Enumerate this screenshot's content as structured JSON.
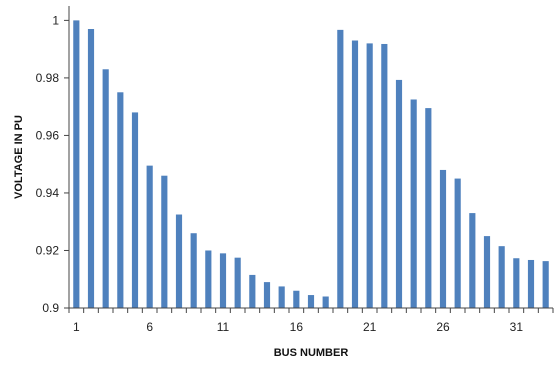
{
  "chart_data": {
    "type": "bar",
    "xlabel": "BUS NUMBER",
    "ylabel": "VOLTAGE IN PU",
    "ylim": [
      0.9,
      1.005
    ],
    "yticks": [
      0.9,
      0.92,
      0.94,
      0.96,
      0.98,
      1
    ],
    "ytick_labels": [
      "0.9",
      "0.92",
      "0.94",
      "0.96",
      "0.98",
      "1"
    ],
    "xtick_labels": [
      "1",
      "6",
      "11",
      "16",
      "21",
      "26",
      "31"
    ],
    "categories": [
      "1",
      "2",
      "3",
      "4",
      "5",
      "6",
      "7",
      "8",
      "9",
      "10",
      "11",
      "12",
      "13",
      "14",
      "15",
      "16",
      "17",
      "18",
      "19",
      "20",
      "21",
      "22",
      "23",
      "24",
      "25",
      "26",
      "27",
      "28",
      "29",
      "30",
      "31",
      "32",
      "33"
    ],
    "values": [
      1.0,
      0.997,
      0.983,
      0.975,
      0.968,
      0.9495,
      0.946,
      0.9325,
      0.926,
      0.92,
      0.919,
      0.9175,
      0.9115,
      0.909,
      0.9075,
      0.906,
      0.9045,
      0.904,
      0.9967,
      0.993,
      0.992,
      0.9918,
      0.9793,
      0.9725,
      0.9695,
      0.948,
      0.945,
      0.933,
      0.925,
      0.9215,
      0.9173,
      0.9167,
      0.9163
    ],
    "bar_color": "#4f81bd",
    "axis_color": "#444444",
    "grid": false,
    "legend": "none"
  }
}
